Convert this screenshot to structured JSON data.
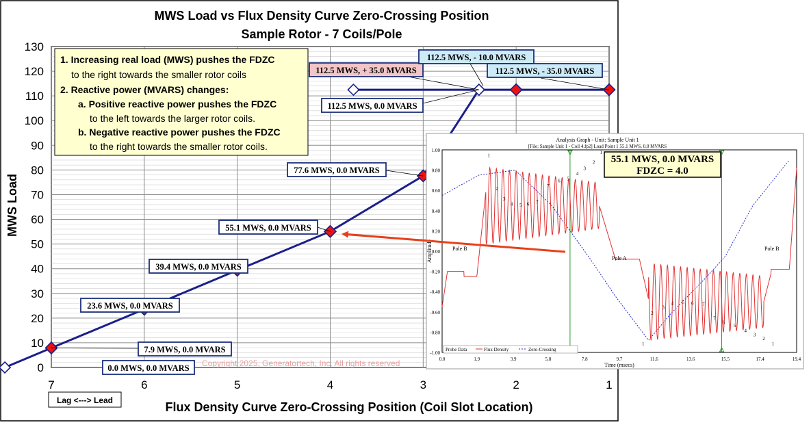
{
  "chart_data": [
    {
      "type": "line",
      "title": "MWS Load vs Flux Density Curve Zero-Crossing Position",
      "subtitle": "Sample Rotor - 7 Coils/Pole",
      "xlabel": "Flux Density Curve Zero-Crossing Position (Coil Slot Location)",
      "ylabel": "MWS Load",
      "xlim": [
        7,
        1
      ],
      "ylim": [
        0,
        130
      ],
      "x_ticks": [
        "7",
        "7",
        "6",
        "5",
        "4",
        "3",
        "2",
        "1"
      ],
      "y_ticks": [
        "0",
        "10",
        "20",
        "30",
        "40",
        "50",
        "60",
        "70",
        "80",
        "90",
        "100",
        "110",
        "120",
        "130"
      ],
      "lag_lead_label": "Lag <---> Lead",
      "copyright": "Copyright 2025, Generatortech, Inc. All rights reserved",
      "grid": true,
      "series": [
        {
          "values": [
            {
              "x": 7.5,
              "y": 0.0,
              "marker": "diamond-open"
            },
            {
              "x": 7.0,
              "y": 7.9,
              "marker": "diamond-red"
            },
            {
              "x": 6.0,
              "y": 23.6,
              "marker": "diamond-red"
            },
            {
              "x": 5.0,
              "y": 39.4,
              "marker": "diamond-red"
            },
            {
              "x": 4.0,
              "y": 55.1,
              "marker": "diamond-red"
            },
            {
              "x": 3.0,
              "y": 77.6,
              "marker": "diamond-red"
            },
            {
              "x": 2.4,
              "y": 112.5,
              "marker": "diamond-open"
            }
          ]
        },
        {
          "values": [
            {
              "x": 3.75,
              "y": 112.5,
              "marker": "diamond-open"
            },
            {
              "x": 2.4,
              "y": 112.5,
              "marker": "diamond-open"
            },
            {
              "x": 2.0,
              "y": 112.5,
              "marker": "diamond-red"
            },
            {
              "x": 1.0,
              "y": 112.5,
              "marker": "diamond-red"
            }
          ]
        }
      ],
      "data_labels": [
        "0.0 MWS, 0.0 MVARS",
        "7.9 MWS, 0.0 MVARS",
        "23.6 MWS, 0.0 MVARS",
        "39.4 MWS, 0.0 MVARS",
        "55.1 MWS, 0.0 MVARS",
        "77.6 MWS, 0.0 MVARS",
        "112.5 MWS, 0.0 MVARS",
        "112.5 MWS, + 35.0 MVARS",
        "112.5 MWS, - 10.0 MVARS",
        "112.5 MWS, - 35.0 MVARS"
      ],
      "notes": [
        "1. Increasing real load (MWS) pushes the FDZC",
        "to the right towards the smaller rotor coils",
        "2. Reactive power (MVARS) changes:",
        "a. Positive reactive power pushes the FDZC",
        "to the left towards the larger rotor coils.",
        "b. Negative reactive power pushes the FDZC",
        "to the right towards the smaller rotor coils."
      ]
    },
    {
      "type": "line",
      "title": "Analysis Graph - Unit: Sample Unit 1",
      "subtitle": "[File: Sample Unit 1 - Coil 4.fp2]  Load Point 1   55.1 MWS,   0.0 MVARS",
      "xlabel": "Time (msecs)",
      "ylabel": "Amplitude",
      "xlim": [
        0.0,
        19.4
      ],
      "ylim": [
        -1.0,
        1.0
      ],
      "x_ticks": [
        "0.0",
        "1.9",
        "3.9",
        "5.8",
        "7.8",
        "9.7",
        "11.6",
        "13.6",
        "15.5",
        "17.4",
        "19.4"
      ],
      "y_ticks": [
        "1.00",
        "0.80",
        "0.60",
        "0.40",
        "0.20",
        "0.00",
        "-0.20",
        "-0.40",
        "-0.60",
        "-0.80",
        "-1.00"
      ],
      "callout": [
        "55.1 MWS, 0.0 MVARS",
        "FDZC = 4.0"
      ],
      "regions": [
        "Pole B",
        "Pole A",
        "Pole B"
      ],
      "legend": [
        "Probe Data",
        "Flux Density",
        "Zero-Crossing"
      ],
      "zero_crossings_ms": [
        7.0,
        15.3
      ],
      "series": [
        {
          "name": "Flux Density",
          "color": "#e03030"
        },
        {
          "name": "Zero-Crossing",
          "color": "#2a2ad0",
          "x": [
            0.0,
            2.0,
            4.0,
            6.0,
            7.0,
            8.0,
            9.5,
            11.3,
            12.5,
            14.5,
            15.5,
            17.0,
            19.0
          ],
          "y": [
            0.55,
            0.75,
            0.8,
            0.45,
            0.2,
            -0.05,
            -0.45,
            -0.88,
            -0.62,
            -0.25,
            -0.05,
            0.45,
            0.9
          ]
        }
      ]
    }
  ]
}
